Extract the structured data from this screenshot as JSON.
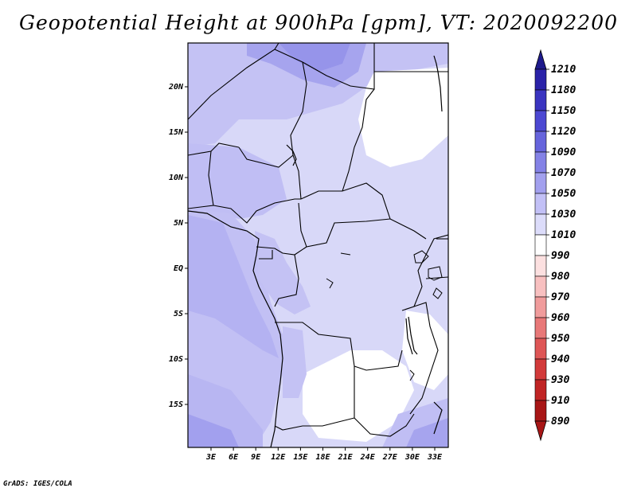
{
  "title": "Geopotential Height at 900hPa [gpm], VT: 2020092200",
  "credit": "GrADS: IGES/COLA",
  "map": {
    "lon_labels": [
      "3E",
      "6E",
      "9E",
      "12E",
      "15E",
      "18E",
      "21E",
      "24E",
      "27E",
      "30E",
      "33E"
    ],
    "lat_labels": [
      "20N",
      "15N",
      "10N",
      "5N",
      "EQ",
      "5S",
      "10S",
      "15S"
    ],
    "lat_values": [
      20,
      15,
      10,
      5,
      0,
      -5,
      -10,
      -15
    ],
    "lon_values": [
      3,
      6,
      9,
      12,
      15,
      18,
      21,
      24,
      27,
      30,
      33
    ]
  },
  "legend": {
    "levels": [
      "1210",
      "1180",
      "1150",
      "1120",
      "1090",
      "1070",
      "1050",
      "1030",
      "1010",
      "990",
      "980",
      "970",
      "960",
      "950",
      "940",
      "930",
      "910",
      "890"
    ],
    "colors": [
      "#1e1a8c",
      "#2a22a8",
      "#3a34c0",
      "#4c48d2",
      "#6664dc",
      "#8482e6",
      "#a2a0ee",
      "#c2c0f6",
      "#dcdcfa",
      "#ffffff",
      "#fce0e0",
      "#f8c0c0",
      "#f09c9c",
      "#e87878",
      "#de5656",
      "#d23a3a",
      "#c02424",
      "#a81616"
    ]
  }
}
